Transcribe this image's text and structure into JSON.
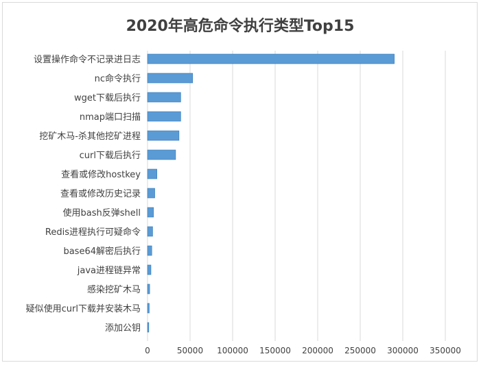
{
  "chart_data": {
    "type": "bar",
    "orientation": "horizontal",
    "title": "2020年高危命令执行类型Top15",
    "xlabel": "",
    "ylabel": "",
    "xlim": [
      0,
      350000
    ],
    "ticks": [
      0,
      50000,
      100000,
      150000,
      200000,
      250000,
      300000,
      350000
    ],
    "tick_labels": [
      "0",
      "50000",
      "100000",
      "150000",
      "200000",
      "250000",
      "300000",
      "350000"
    ],
    "grid": true,
    "legend": "none",
    "bar_color": "#5b9bd5",
    "categories": [
      "设置操作命令不记录进日志",
      "nc命令执行",
      "wget下载后执行",
      "nmap端口扫描",
      "挖矿木马-杀其他挖矿进程",
      "curl下载后执行",
      "查看或修改hostkey",
      "查看或修改历史记录",
      "使用bash反弹shell",
      "Redis进程执行可疑命令",
      "base64解密后执行",
      "java进程链异常",
      "感染挖矿木马",
      "疑似使用curl下载并安装木马",
      "添加公钥"
    ],
    "values": [
      290000,
      53000,
      39000,
      39000,
      37000,
      33000,
      11000,
      8500,
      7000,
      6000,
      5000,
      4000,
      2500,
      2000,
      1500
    ]
  }
}
